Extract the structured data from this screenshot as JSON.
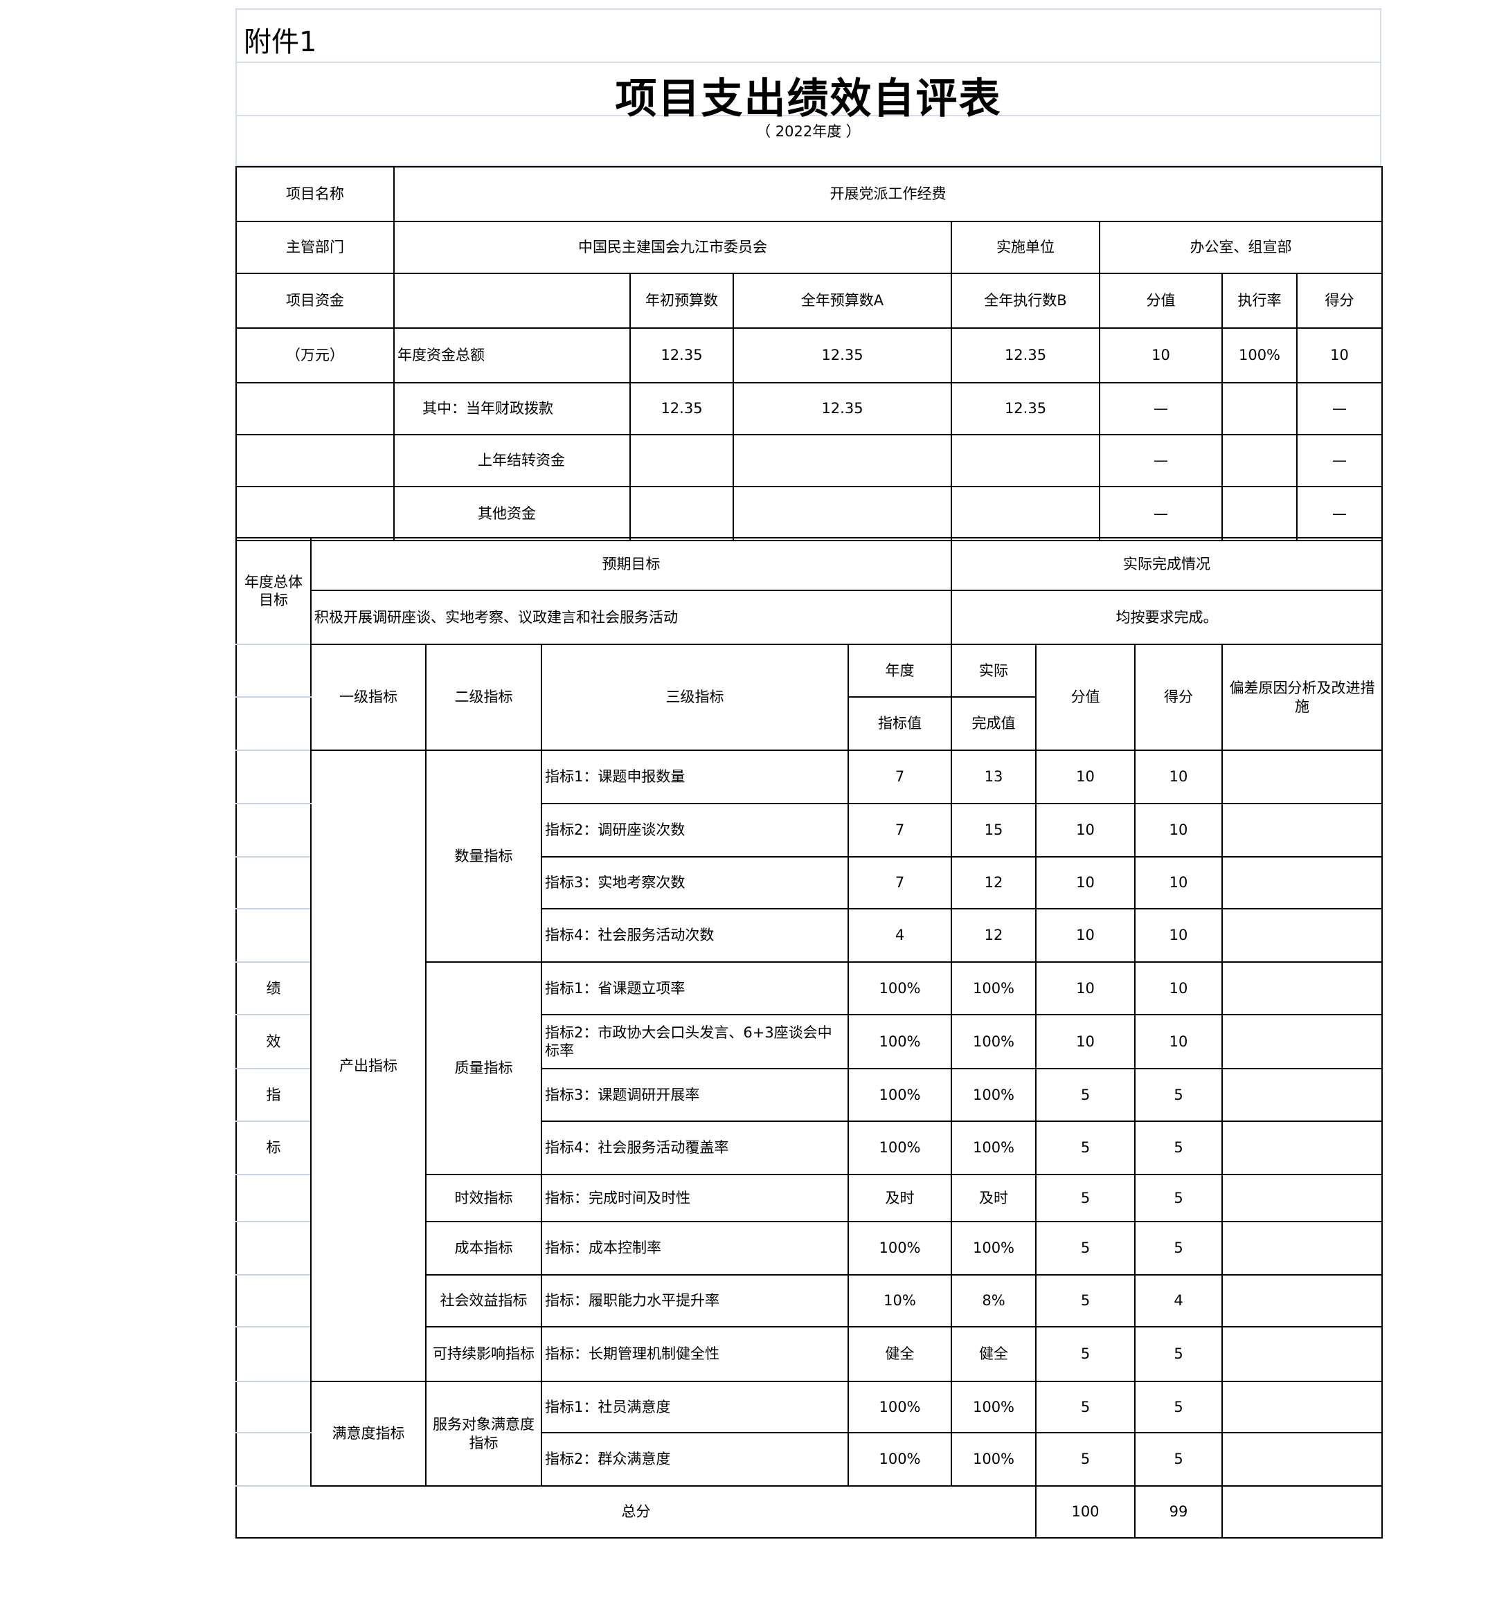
{
  "header": {
    "attachment": "附件1",
    "title": "项目支出绩效自评表",
    "year": "（ 2022年度 ）"
  },
  "project": {
    "name_label": "项目名称",
    "name": "开展党派工作经费",
    "dept_label": "主管部门",
    "dept": "中国民主建国会九江市委员会",
    "impl_label": "实施单位",
    "impl": "办公室、组宣部",
    "fund_label": "项目资金",
    "fund_unit": "（万元）",
    "fund_headers": [
      "年初预算数",
      "全年预算数A",
      "全年执行数B",
      "分值",
      "执行率",
      "得分"
    ],
    "fund_rows": [
      {
        "label": "年度资金总额",
        "initial": "12.35",
        "annual": "12.35",
        "executed": "12.35",
        "score_value": "10",
        "rate": "100%",
        "score": "10"
      },
      {
        "label": "其中：当年财政拨款",
        "initial": "12.35",
        "annual": "12.35",
        "executed": "12.35",
        "score_value": "—",
        "rate": "",
        "score": "—"
      },
      {
        "label": "上年结转资金",
        "initial": "",
        "annual": "",
        "executed": "",
        "score_value": "—",
        "rate": "",
        "score": "—"
      },
      {
        "label": "其他资金",
        "initial": "",
        "annual": "",
        "executed": "",
        "score_value": "—",
        "rate": "",
        "score": "—"
      }
    ]
  },
  "goal": {
    "label": "年度总体目标",
    "expected_label": "预期目标",
    "actual_label": "实际完成情况",
    "expected": "积极开展调研座谈、实地考察、议政建言和社会服务活动",
    "actual": "均按要求完成。"
  },
  "indicators": {
    "side_label": [
      "绩",
      "效",
      "指",
      "标"
    ],
    "headers": {
      "level1": "一级指标",
      "level2": "二级指标",
      "level3": "三级指标",
      "target_top": "年度",
      "target_bottom": "指标值",
      "actual_top": "实际",
      "actual_bottom": "完成值",
      "score_value": "分值",
      "score": "得分",
      "deviation": "偏差原因分析及改进措施"
    },
    "groups": [
      {
        "level1": "产出指标",
        "subgroups": [
          {
            "level2": "数量指标",
            "rows": [
              {
                "name": "指标1：课题申报数量",
                "target": "7",
                "actual": "13",
                "score_value": "10",
                "score": "10"
              },
              {
                "name": "指标2：调研座谈次数",
                "target": "7",
                "actual": "15",
                "score_value": "10",
                "score": "10"
              },
              {
                "name": "指标3：实地考察次数",
                "target": "7",
                "actual": "12",
                "score_value": "10",
                "score": "10"
              },
              {
                "name": "指标4：社会服务活动次数",
                "target": "4",
                "actual": "12",
                "score_value": "10",
                "score": "10"
              }
            ]
          },
          {
            "level2": "质量指标",
            "rows": [
              {
                "name": "指标1：省课题立项率",
                "target": "100%",
                "actual": "100%",
                "score_value": "10",
                "score": "10"
              },
              {
                "name": "指标2：市政协大会口头发言、6+3座谈会中标率",
                "target": "100%",
                "actual": "100%",
                "score_value": "10",
                "score": "10"
              },
              {
                "name": "指标3：课题调研开展率",
                "target": "100%",
                "actual": "100%",
                "score_value": "5",
                "score": "5"
              },
              {
                "name": "指标4：社会服务活动覆盖率",
                "target": "100%",
                "actual": "100%",
                "score_value": "5",
                "score": "5"
              }
            ]
          },
          {
            "level2": "时效指标",
            "rows": [
              {
                "name": "指标：完成时间及时性",
                "target": "及时",
                "actual": "及时",
                "score_value": "5",
                "score": "5"
              }
            ]
          },
          {
            "level2": "成本指标",
            "rows": [
              {
                "name": "指标：成本控制率",
                "target": "100%",
                "actual": "100%",
                "score_value": "5",
                "score": "5"
              }
            ]
          },
          {
            "level2": "社会效益指标",
            "rows": [
              {
                "name": "指标：履职能力水平提升率",
                "target": "10%",
                "actual": "8%",
                "score_value": "5",
                "score": "4"
              }
            ]
          },
          {
            "level2": "可持续影响指标",
            "rows": [
              {
                "name": "指标：长期管理机制健全性",
                "target": "健全",
                "actual": "健全",
                "score_value": "5",
                "score": "5"
              }
            ]
          }
        ]
      },
      {
        "level1": "满意度指标",
        "subgroups": [
          {
            "level2": "服务对象满意度指标",
            "rows": [
              {
                "name": "指标1：社员满意度",
                "target": "100%",
                "actual": "100%",
                "score_value": "5",
                "score": "5"
              },
              {
                "name": "指标2：群众满意度",
                "target": "100%",
                "actual": "100%",
                "score_value": "5",
                "score": "5"
              }
            ]
          }
        ]
      }
    ],
    "total": {
      "label": "总分",
      "score_value": "100",
      "score": "99"
    }
  }
}
